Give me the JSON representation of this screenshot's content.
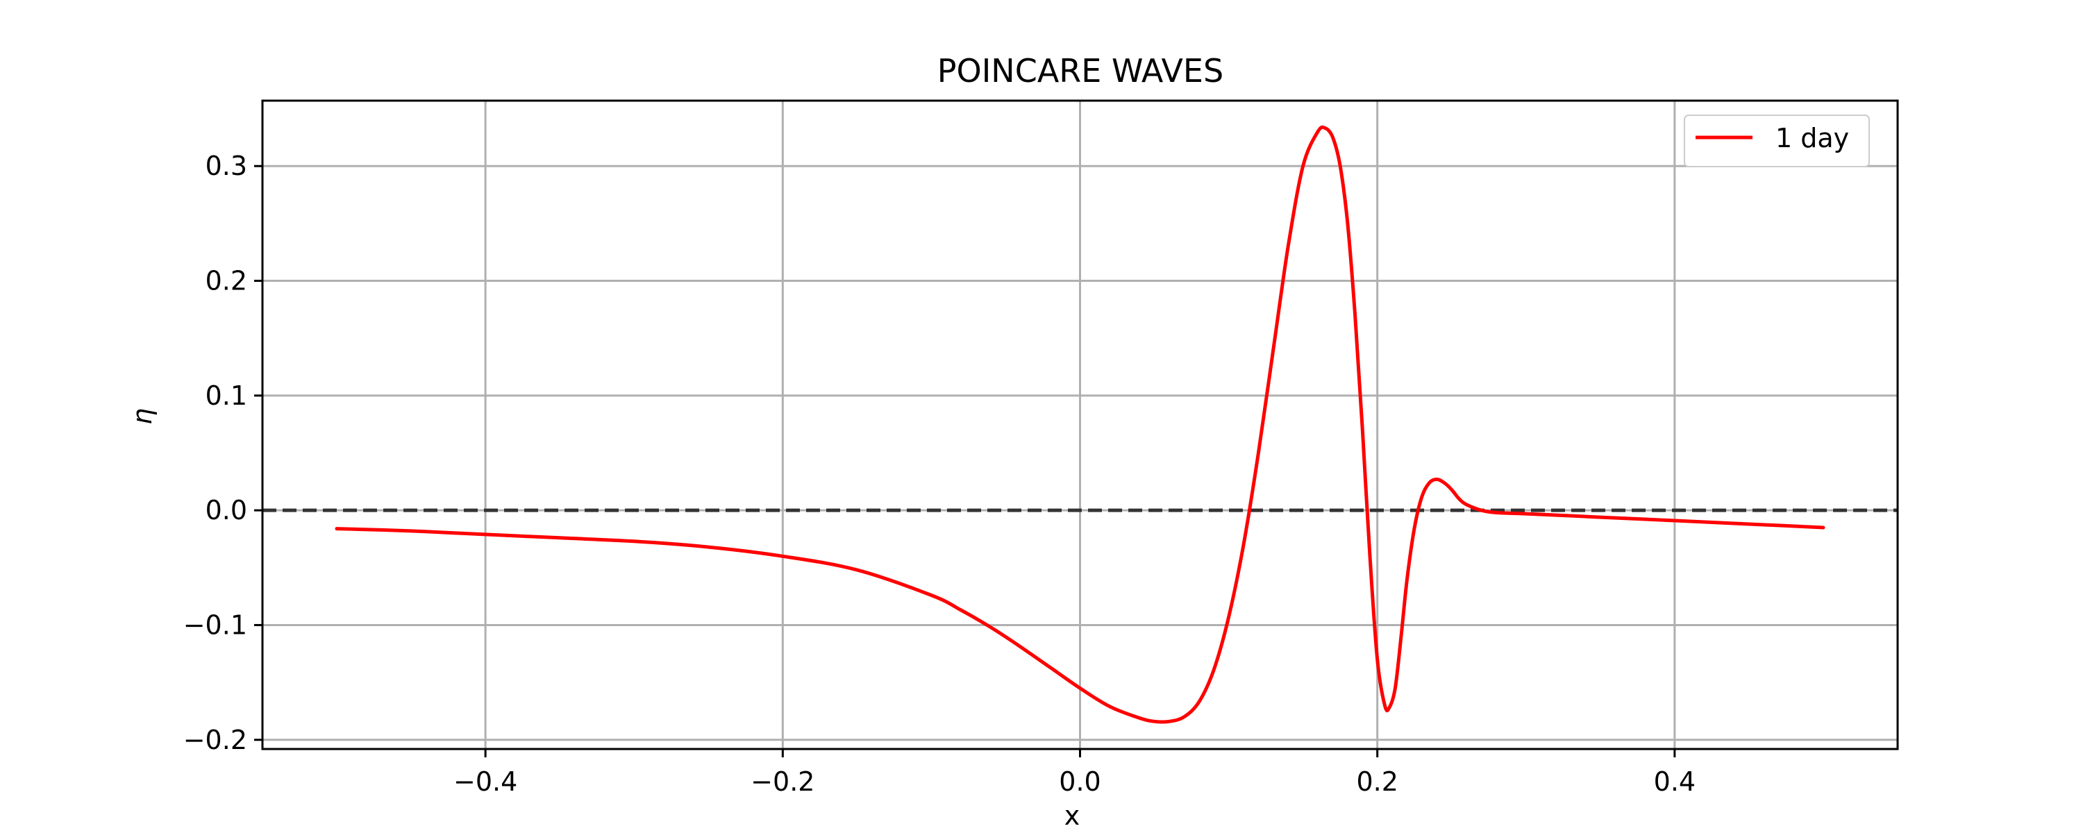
{
  "chart_data": {
    "type": "line",
    "title": "POINCARE WAVES",
    "xlabel": "x",
    "ylabel": "η",
    "xlim": [
      -0.55,
      0.55
    ],
    "ylim": [
      -0.208,
      0.357
    ],
    "xticks": [
      -0.4,
      -0.2,
      0.0,
      0.2,
      0.4
    ],
    "xtick_labels": [
      "−0.4",
      "−0.2",
      "0.0",
      "0.2",
      "0.4"
    ],
    "yticks": [
      -0.2,
      -0.1,
      0.0,
      0.1,
      0.2,
      0.3
    ],
    "ytick_labels": [
      "−0.2",
      "−0.1",
      "0.0",
      "0.1",
      "0.2",
      "0.3"
    ],
    "grid": true,
    "legend_position": "top-right",
    "reference_line": {
      "y": 0.0,
      "style": "dashed",
      "color": "#333333"
    },
    "series": [
      {
        "name": "1 day",
        "color": "#ff0000",
        "x": [
          -0.5,
          -0.45,
          -0.4,
          -0.35,
          -0.3,
          -0.25,
          -0.2,
          -0.15,
          -0.1,
          -0.08,
          -0.06,
          -0.04,
          -0.02,
          0.0,
          0.02,
          0.04,
          0.05,
          0.06,
          0.07,
          0.08,
          0.09,
          0.1,
          0.11,
          0.12,
          0.13,
          0.14,
          0.15,
          0.16,
          0.165,
          0.17,
          0.175,
          0.18,
          0.185,
          0.19,
          0.195,
          0.2,
          0.205,
          0.208,
          0.212,
          0.216,
          0.22,
          0.225,
          0.23,
          0.235,
          0.24,
          0.245,
          0.25,
          0.255,
          0.26,
          0.27,
          0.28,
          0.3,
          0.35,
          0.4,
          0.45,
          0.5
        ],
        "y": [
          -0.016,
          -0.018,
          -0.021,
          -0.024,
          -0.027,
          -0.032,
          -0.04,
          -0.052,
          -0.074,
          -0.087,
          -0.102,
          -0.119,
          -0.137,
          -0.155,
          -0.171,
          -0.181,
          -0.184,
          -0.184,
          -0.18,
          -0.167,
          -0.139,
          -0.093,
          -0.03,
          0.05,
          0.14,
          0.23,
          0.3,
          0.33,
          0.333,
          0.325,
          0.3,
          0.25,
          0.17,
          0.07,
          -0.04,
          -0.13,
          -0.17,
          -0.172,
          -0.155,
          -0.11,
          -0.06,
          -0.015,
          0.012,
          0.024,
          0.027,
          0.024,
          0.018,
          0.01,
          0.005,
          0.0,
          -0.002,
          -0.003,
          -0.006,
          -0.009,
          -0.012,
          -0.015
        ]
      }
    ]
  }
}
